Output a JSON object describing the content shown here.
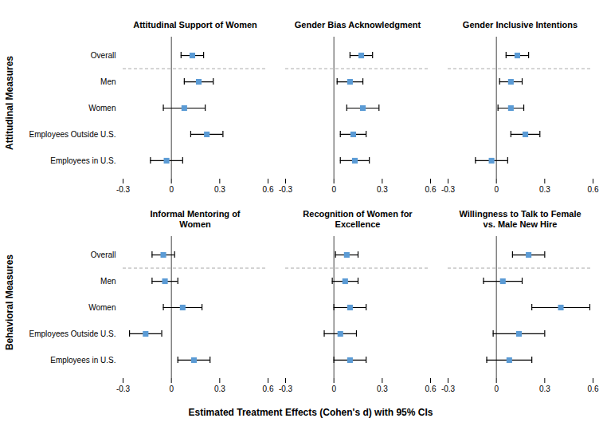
{
  "chart_data": {
    "type": "errorbar",
    "xlabel": "Estimated Treatment Effects (Cohen's d) with 95% CIs",
    "categories": [
      "Overall",
      "Men",
      "Women",
      "Employees Outside U.S.",
      "Employees in U.S."
    ],
    "xlim": [
      -0.3,
      0.6
    ],
    "xticks": [
      -0.3,
      0,
      0.3,
      0.6
    ],
    "color": "#5b9bd5",
    "reference_x": 0,
    "rows": [
      {
        "label": "Attitudinal Measures",
        "panels": [
          {
            "title": "Attitudinal Support of Women",
            "values": [
              0.13,
              0.17,
              0.08,
              0.22,
              -0.03
            ],
            "ci_lo": [
              0.06,
              0.08,
              -0.05,
              0.12,
              -0.13
            ],
            "ci_hi": [
              0.2,
              0.26,
              0.21,
              0.32,
              0.07
            ]
          },
          {
            "title": "Gender Bias Acknowledgment",
            "values": [
              0.17,
              0.1,
              0.18,
              0.12,
              0.13
            ],
            "ci_lo": [
              0.1,
              0.02,
              0.08,
              0.04,
              0.04
            ],
            "ci_hi": [
              0.24,
              0.18,
              0.28,
              0.2,
              0.22
            ]
          },
          {
            "title": "Gender Inclusive Intentions",
            "values": [
              0.13,
              0.09,
              0.09,
              0.18,
              -0.03
            ],
            "ci_lo": [
              0.06,
              0.02,
              0.01,
              0.09,
              -0.13
            ],
            "ci_hi": [
              0.2,
              0.16,
              0.17,
              0.27,
              0.07
            ]
          }
        ]
      },
      {
        "label": "Behavioral Measures",
        "panels": [
          {
            "title": "Informal Mentoring of\nWomen",
            "values": [
              -0.05,
              -0.04,
              0.07,
              -0.16,
              0.14
            ],
            "ci_lo": [
              -0.12,
              -0.12,
              -0.05,
              -0.26,
              0.04
            ],
            "ci_hi": [
              0.02,
              0.04,
              0.19,
              -0.06,
              0.24
            ]
          },
          {
            "title": "Recognition of Women for\nExcellence",
            "values": [
              0.08,
              0.07,
              0.1,
              0.04,
              0.1
            ],
            "ci_lo": [
              0.01,
              -0.01,
              0.0,
              -0.06,
              0.0
            ],
            "ci_hi": [
              0.15,
              0.15,
              0.2,
              0.14,
              0.2
            ]
          },
          {
            "title": "Willingness to Talk to Female\nvs. Male New Hire",
            "values": [
              0.2,
              0.04,
              0.4,
              0.14,
              0.08
            ],
            "ci_lo": [
              0.1,
              -0.08,
              0.22,
              -0.02,
              -0.06
            ],
            "ci_hi": [
              0.3,
              0.16,
              0.58,
              0.3,
              0.22
            ]
          }
        ]
      }
    ]
  }
}
